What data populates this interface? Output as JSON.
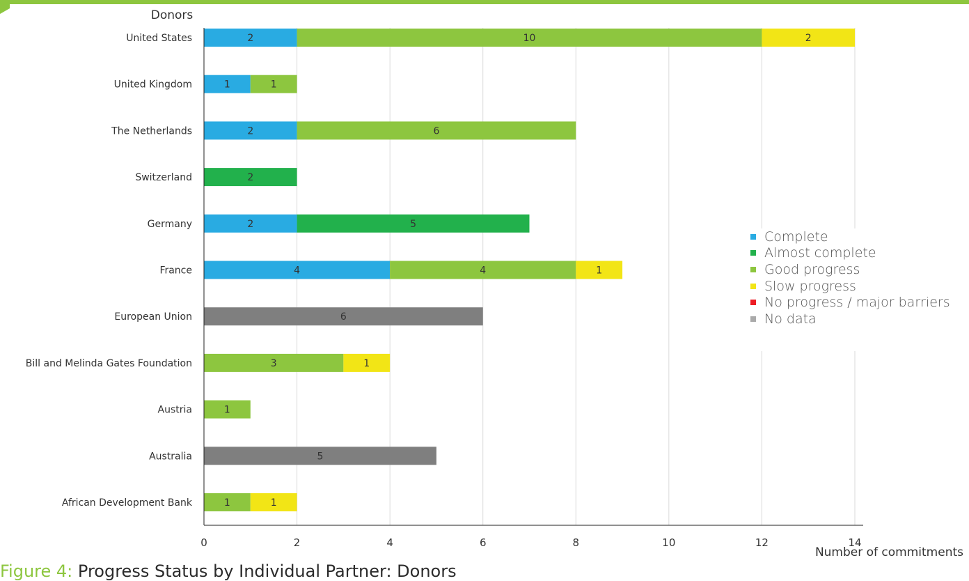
{
  "caption": {
    "number": "Figure 4:",
    "title": "Progress Status by Individual Partner: Donors"
  },
  "chart_data": {
    "type": "bar",
    "orientation": "horizontal",
    "stacked": true,
    "ylabel": "Donors",
    "xlabel": "Number of commitments",
    "xlim": [
      0,
      14
    ],
    "xticks": [
      "0",
      "2",
      "4",
      "6",
      "8",
      "10",
      "12",
      "14"
    ],
    "grid": "vertical",
    "legend_position": "right",
    "categories": [
      "United States",
      "United Kingdom",
      "The Netherlands",
      "Switzerland",
      "Germany",
      "France",
      "European Union",
      "Bill and Melinda Gates Foundation",
      "Austria",
      "Australia",
      "African Development Bank"
    ],
    "series": [
      {
        "name": "Complete",
        "color": "#29abe2",
        "values": [
          2,
          1,
          2,
          0,
          2,
          4,
          0,
          0,
          0,
          0,
          0
        ]
      },
      {
        "name": "Almost complete",
        "color": "#22b14c",
        "values": [
          0,
          0,
          0,
          2,
          5,
          0,
          0,
          0,
          0,
          0,
          0
        ]
      },
      {
        "name": "Good progress",
        "color": "#8dc63f",
        "values": [
          10,
          1,
          6,
          0,
          0,
          4,
          0,
          3,
          1,
          0,
          1
        ]
      },
      {
        "name": "Slow progress",
        "color": "#f2e516",
        "values": [
          2,
          0,
          0,
          0,
          0,
          1,
          0,
          1,
          0,
          0,
          1
        ]
      },
      {
        "name": "No progress / major barriers",
        "color": "#ed1c24",
        "values": [
          0,
          0,
          0,
          0,
          0,
          0,
          0,
          0,
          0,
          0,
          0
        ]
      },
      {
        "name": "No data",
        "color": "#7f7f7f",
        "legend_color": "#aaaaaa",
        "values": [
          0,
          0,
          0,
          0,
          0,
          0,
          6,
          0,
          0,
          5,
          0
        ]
      }
    ]
  }
}
